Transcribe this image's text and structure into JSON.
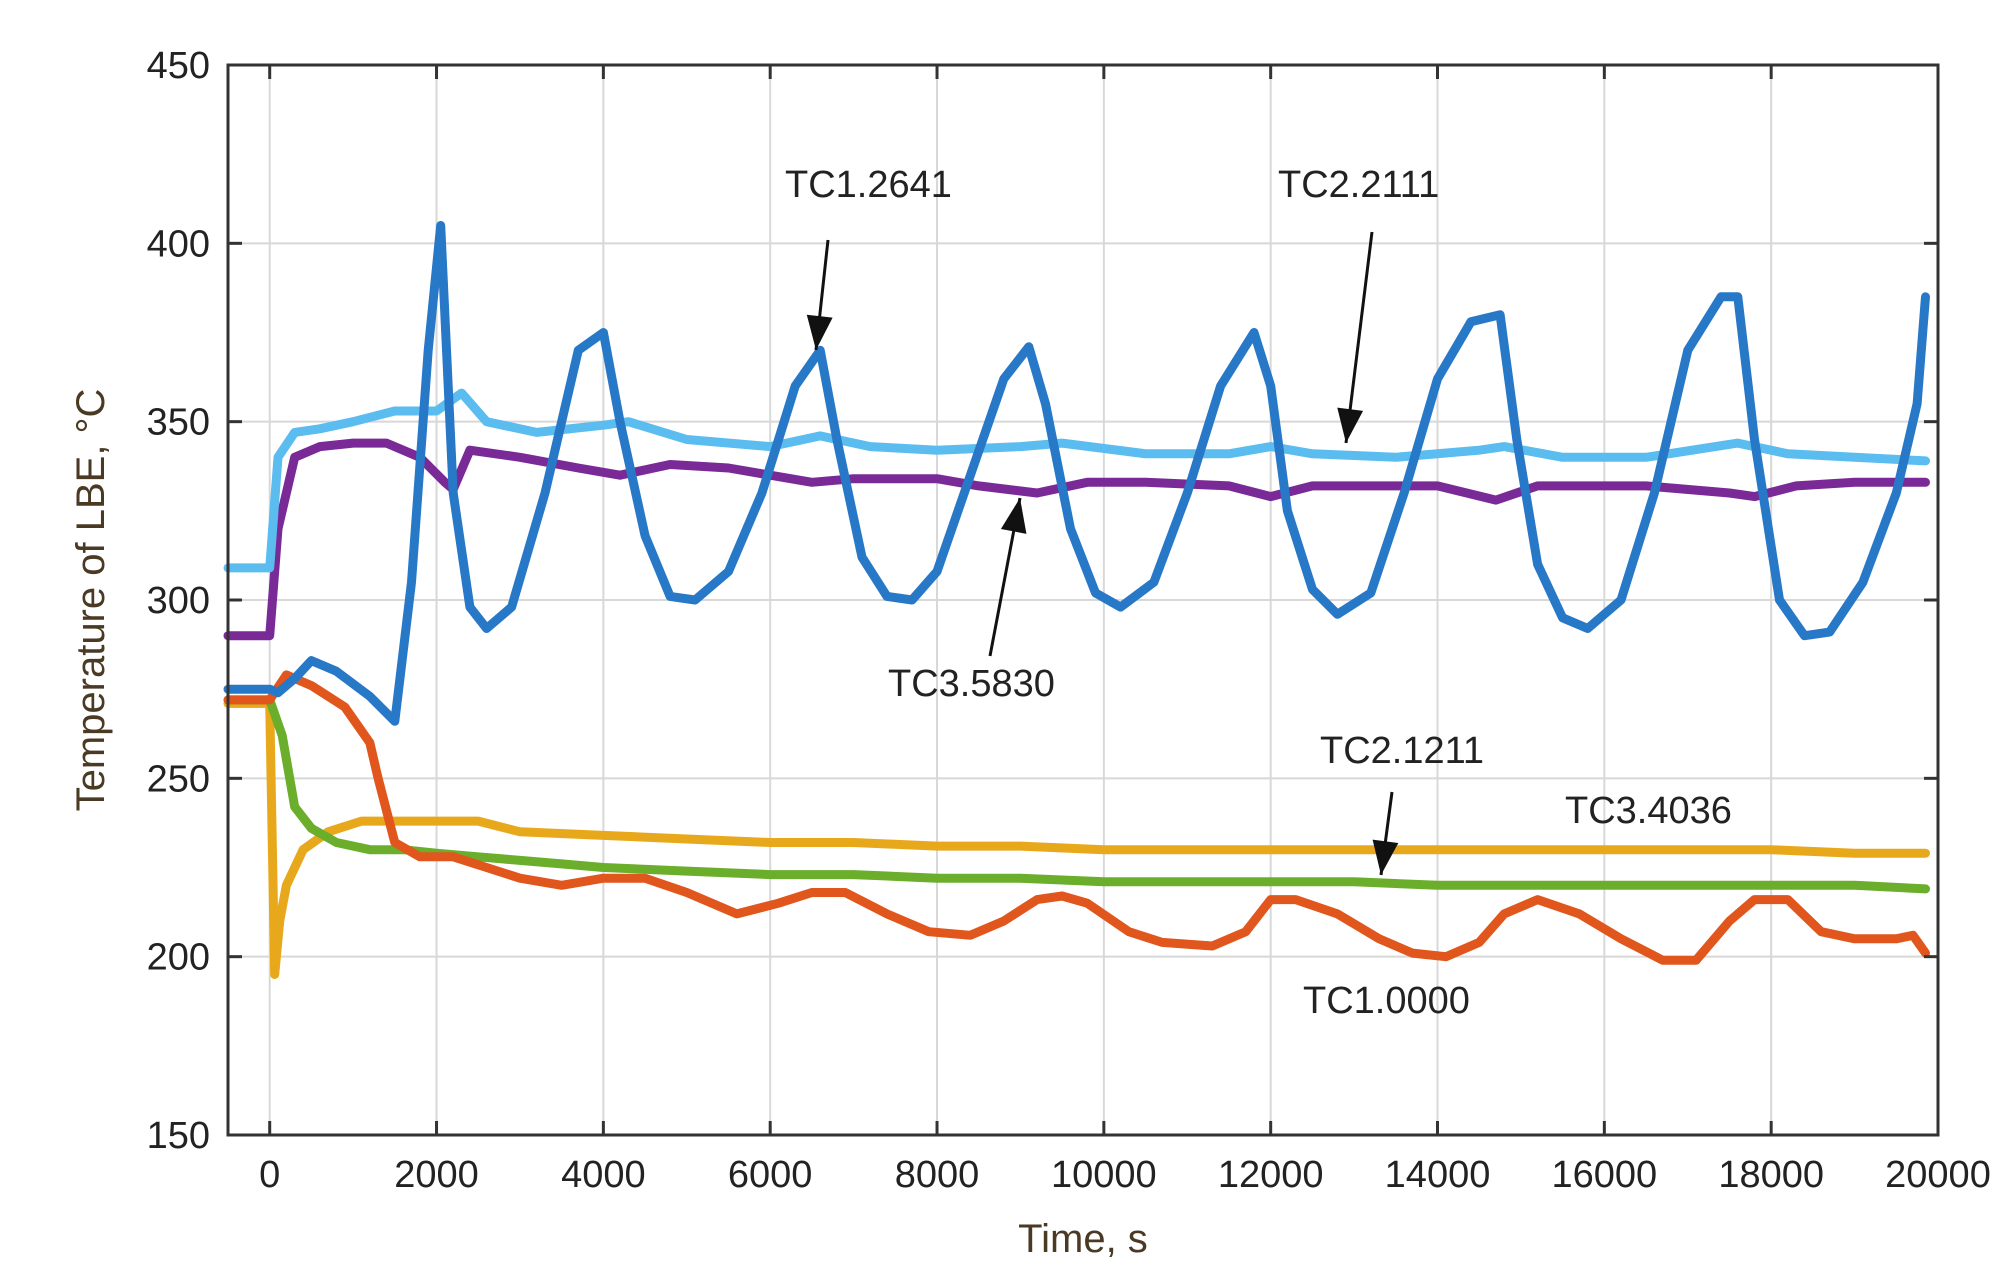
{
  "chart_data": {
    "type": "line",
    "title": "",
    "xlabel": "Time, s",
    "ylabel": "Temperature of LBE, °C",
    "xlim": [
      -500,
      20000
    ],
    "ylim": [
      150,
      450
    ],
    "grid": true,
    "xticks": [
      0,
      2000,
      4000,
      6000,
      8000,
      10000,
      12000,
      14000,
      16000,
      18000,
      20000
    ],
    "yticks": [
      150,
      200,
      250,
      300,
      350,
      400,
      450
    ],
    "xtick_labels": [
      "0",
      "2000",
      "4000",
      "6000",
      "8000",
      "10000",
      "12000",
      "14000",
      "16000",
      "18000",
      "20000"
    ],
    "ytick_labels": [
      "150",
      "200",
      "250",
      "300",
      "350",
      "400",
      "450"
    ],
    "series": [
      {
        "name": "TC1.2641",
        "color": "#2878c8",
        "x": [
          -500,
          0,
          100,
          300,
          500,
          800,
          1200,
          1500,
          1700,
          1900,
          2050,
          2200,
          2400,
          2600,
          2900,
          3300,
          3700,
          4000,
          4200,
          4500,
          4800,
          5100,
          5500,
          5900,
          6300,
          6600,
          6800,
          7100,
          7400,
          7700,
          8000,
          8400,
          8800,
          9100,
          9300,
          9600,
          9900,
          10200,
          10600,
          11000,
          11400,
          11800,
          12000,
          12200,
          12500,
          12800,
          13200,
          13600,
          14000,
          14400,
          14750,
          14950,
          15200,
          15500,
          15800,
          16200,
          16600,
          17000,
          17400,
          17600,
          17800,
          18100,
          18400,
          18700,
          19100,
          19500,
          19750,
          19850
        ],
        "y": [
          275,
          275,
          274,
          278,
          283,
          280,
          273,
          266,
          305,
          370,
          405,
          330,
          298,
          292,
          298,
          330,
          370,
          375,
          350,
          318,
          301,
          300,
          308,
          330,
          360,
          370,
          345,
          312,
          301,
          300,
          308,
          335,
          362,
          371,
          355,
          320,
          302,
          298,
          305,
          330,
          360,
          375,
          360,
          325,
          303,
          296,
          302,
          330,
          362,
          378,
          380,
          345,
          310,
          295,
          292,
          300,
          330,
          370,
          385,
          385,
          345,
          300,
          290,
          291,
          305,
          330,
          355,
          385
        ]
      },
      {
        "name": "TC2.2111",
        "color": "#5bbcf0",
        "x": [
          -500,
          0,
          100,
          300,
          600,
          1000,
          1500,
          2000,
          2300,
          2600,
          3200,
          4000,
          4300,
          5000,
          6000,
          6600,
          7200,
          8000,
          9000,
          9500,
          10500,
          11500,
          12000,
          12500,
          13500,
          14500,
          14800,
          15500,
          16500,
          17600,
          18200,
          19000,
          19850
        ],
        "y": [
          309,
          309,
          340,
          347,
          348,
          350,
          353,
          353,
          358,
          350,
          347,
          349,
          350,
          345,
          343,
          346,
          343,
          342,
          343,
          344,
          341,
          341,
          343,
          341,
          340,
          342,
          343,
          340,
          340,
          344,
          341,
          340,
          339
        ]
      },
      {
        "name": "TC3.5830",
        "color": "#7a2a96",
        "x": [
          -500,
          0,
          100,
          300,
          600,
          1000,
          1400,
          1800,
          2100,
          2200,
          2400,
          3000,
          3700,
          4200,
          4800,
          5500,
          6000,
          6500,
          7000,
          8000,
          8500,
          9200,
          9800,
          10500,
          11500,
          12000,
          12500,
          13500,
          14000,
          14700,
          15200,
          16500,
          17500,
          17800,
          18300,
          19000,
          19850
        ],
        "y": [
          290,
          290,
          320,
          340,
          343,
          344,
          344,
          340,
          333,
          331,
          342,
          340,
          337,
          335,
          338,
          337,
          335,
          333,
          334,
          334,
          332,
          330,
          333,
          333,
          332,
          329,
          332,
          332,
          332,
          328,
          332,
          332,
          330,
          329,
          332,
          333,
          333
        ]
      },
      {
        "name": "TC3.4036",
        "color": "#e8a81c",
        "x": [
          -500,
          0,
          60,
          120,
          200,
          400,
          700,
          1100,
          1500,
          2000,
          2500,
          3000,
          4000,
          5000,
          6000,
          7000,
          8000,
          9000,
          10000,
          11000,
          12000,
          13000,
          14000,
          15000,
          16000,
          17000,
          18000,
          19000,
          19850
        ],
        "y": [
          271,
          271,
          195,
          210,
          220,
          230,
          235,
          238,
          238,
          238,
          238,
          235,
          234,
          233,
          232,
          232,
          231,
          231,
          230,
          230,
          230,
          230,
          230,
          230,
          230,
          230,
          230,
          229,
          229
        ]
      },
      {
        "name": "TC2.1211",
        "color": "#6aae2c",
        "x": [
          -500,
          0,
          150,
          300,
          500,
          800,
          1200,
          1600,
          2000,
          2500,
          3000,
          3500,
          4000,
          5000,
          6000,
          7000,
          8000,
          9000,
          10000,
          11000,
          12000,
          13000,
          14000,
          15000,
          16000,
          17000,
          18000,
          19000,
          19850
        ],
        "y": [
          272,
          272,
          262,
          242,
          236,
          232,
          230,
          230,
          229,
          228,
          227,
          226,
          225,
          224,
          223,
          223,
          222,
          222,
          221,
          221,
          221,
          221,
          220,
          220,
          220,
          220,
          220,
          220,
          219
        ]
      },
      {
        "name": "TC1.0000",
        "color": "#e0561c",
        "x": [
          -500,
          0,
          200,
          500,
          900,
          1200,
          1300,
          1500,
          1800,
          2200,
          2600,
          3000,
          3500,
          4000,
          4500,
          5000,
          5600,
          6100,
          6500,
          6900,
          7400,
          7900,
          8400,
          8800,
          9200,
          9500,
          9800,
          10300,
          10700,
          11300,
          11700,
          12000,
          12300,
          12800,
          13300,
          13700,
          14100,
          14500,
          14800,
          15200,
          15700,
          16200,
          16700,
          17100,
          17500,
          17800,
          18200,
          18600,
          19000,
          19500,
          19700,
          19850
        ],
        "y": [
          272,
          272,
          279,
          276,
          270,
          260,
          250,
          232,
          228,
          228,
          225,
          222,
          220,
          222,
          222,
          218,
          212,
          215,
          218,
          218,
          212,
          207,
          206,
          210,
          216,
          217,
          215,
          207,
          204,
          203,
          207,
          216,
          216,
          212,
          205,
          201,
          200,
          204,
          212,
          216,
          212,
          205,
          199,
          199,
          210,
          216,
          216,
          207,
          205,
          205,
          206,
          201
        ]
      }
    ]
  },
  "annotations": [
    {
      "label": "TC1.2641"
    },
    {
      "label": "TC2.2111"
    },
    {
      "label": "TC3.5830"
    },
    {
      "label": "TC2.1211"
    },
    {
      "label": "TC3.4036"
    },
    {
      "label": "TC1.0000"
    }
  ]
}
